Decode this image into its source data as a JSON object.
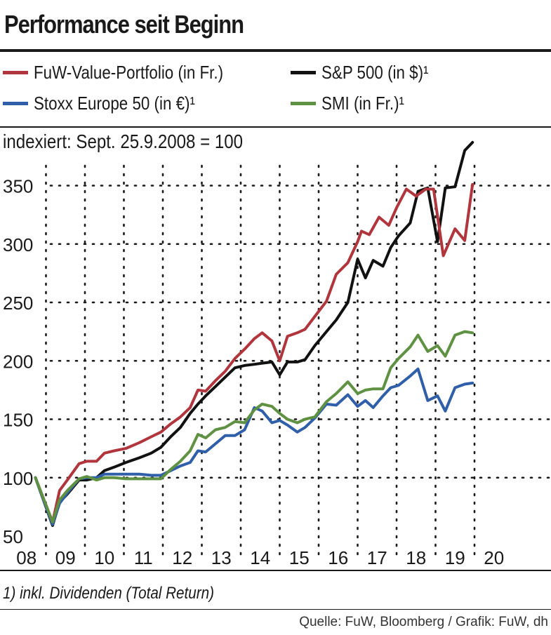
{
  "header": {
    "title": "Performance seit Beginn",
    "subtitle": "indexiert: Sept. 25.9.2008 = 100"
  },
  "footer": {
    "note": "1) inkl. Dividenden (Total Return)",
    "source": "Quelle: FuW, Bloomberg / Grafik: FuW, dh"
  },
  "chart_data": {
    "type": "line",
    "title": "Performance seit Beginn",
    "subtitle": "indexiert: Sept. 25.9.2008 = 100",
    "xlabel": "",
    "ylabel": "",
    "xlim": [
      2008.4,
      2020.5
    ],
    "ylim": [
      50,
      385
    ],
    "x_ticks": [
      {
        "value": 2008.5,
        "label": "08"
      },
      {
        "value": 2009.5,
        "label": "09"
      },
      {
        "value": 2010.5,
        "label": "10"
      },
      {
        "value": 2011.5,
        "label": "11"
      },
      {
        "value": 2012.5,
        "label": "12"
      },
      {
        "value": 2013.5,
        "label": "13"
      },
      {
        "value": 2014.5,
        "label": "14"
      },
      {
        "value": 2015.5,
        "label": "15"
      },
      {
        "value": 2016.5,
        "label": "16"
      },
      {
        "value": 2017.5,
        "label": "17"
      },
      {
        "value": 2018.5,
        "label": "18"
      },
      {
        "value": 2019.5,
        "label": "19"
      },
      {
        "value": 2020.5,
        "label": "20"
      }
    ],
    "vgrid": [
      2009,
      2010,
      2011,
      2012,
      2013,
      2014,
      2015,
      2016,
      2017,
      2018,
      2019,
      2020
    ],
    "y_ticks": [
      50,
      100,
      150,
      200,
      250,
      300,
      350
    ],
    "grid": "dotted",
    "legend_position": "top",
    "series": [
      {
        "name": "FuW-Value-Portfolio (in Fr.)",
        "color": "#b0353c",
        "points": [
          [
            2008.73,
            100
          ],
          [
            2009.17,
            62
          ],
          [
            2009.35,
            89
          ],
          [
            2009.55,
            98
          ],
          [
            2009.85,
            112
          ],
          [
            2010.05,
            114
          ],
          [
            2010.3,
            114
          ],
          [
            2010.5,
            121
          ],
          [
            2010.75,
            123
          ],
          [
            2011.05,
            125
          ],
          [
            2011.4,
            130
          ],
          [
            2011.7,
            135
          ],
          [
            2011.95,
            139
          ],
          [
            2012.2,
            146
          ],
          [
            2012.45,
            152
          ],
          [
            2012.7,
            160
          ],
          [
            2012.9,
            175
          ],
          [
            2013.1,
            174
          ],
          [
            2013.35,
            183
          ],
          [
            2013.6,
            191
          ],
          [
            2013.85,
            202
          ],
          [
            2014.1,
            210
          ],
          [
            2014.35,
            219
          ],
          [
            2014.55,
            224
          ],
          [
            2014.8,
            217
          ],
          [
            2015.0,
            200
          ],
          [
            2015.2,
            221
          ],
          [
            2015.45,
            224
          ],
          [
            2015.65,
            227
          ],
          [
            2015.9,
            238
          ],
          [
            2016.2,
            251
          ],
          [
            2016.45,
            274
          ],
          [
            2016.75,
            284
          ],
          [
            2017.0,
            302
          ],
          [
            2017.1,
            311
          ],
          [
            2017.3,
            308
          ],
          [
            2017.55,
            323
          ],
          [
            2017.8,
            316
          ],
          [
            2018.0,
            331
          ],
          [
            2018.25,
            347
          ],
          [
            2018.5,
            341
          ],
          [
            2018.75,
            347
          ],
          [
            2018.95,
            347
          ],
          [
            2019.2,
            290
          ],
          [
            2019.5,
            313
          ],
          [
            2019.75,
            303
          ],
          [
            2019.95,
            351
          ]
        ]
      },
      {
        "name": "S&P 500 (in $)¹",
        "color": "#111111",
        "points": [
          [
            2008.73,
            100
          ],
          [
            2009.17,
            59
          ],
          [
            2009.35,
            79
          ],
          [
            2009.55,
            86
          ],
          [
            2009.85,
            98
          ],
          [
            2010.05,
            98
          ],
          [
            2010.3,
            100
          ],
          [
            2010.5,
            106
          ],
          [
            2010.75,
            109
          ],
          [
            2011.05,
            113
          ],
          [
            2011.4,
            117
          ],
          [
            2011.7,
            121
          ],
          [
            2011.95,
            126
          ],
          [
            2012.2,
            135
          ],
          [
            2012.45,
            143
          ],
          [
            2012.7,
            155
          ],
          [
            2012.9,
            163
          ],
          [
            2013.1,
            170
          ],
          [
            2013.35,
            178
          ],
          [
            2013.6,
            186
          ],
          [
            2013.85,
            194
          ],
          [
            2014.1,
            196
          ],
          [
            2014.35,
            197
          ],
          [
            2014.55,
            198
          ],
          [
            2014.8,
            199
          ],
          [
            2015.0,
            188
          ],
          [
            2015.2,
            199
          ],
          [
            2015.45,
            199
          ],
          [
            2015.65,
            201
          ],
          [
            2015.9,
            213
          ],
          [
            2016.2,
            225
          ],
          [
            2016.45,
            235
          ],
          [
            2016.75,
            250
          ],
          [
            2017.0,
            287
          ],
          [
            2017.2,
            271
          ],
          [
            2017.4,
            286
          ],
          [
            2017.65,
            281
          ],
          [
            2017.85,
            297
          ],
          [
            2018.05,
            307
          ],
          [
            2018.35,
            318
          ],
          [
            2018.55,
            345
          ],
          [
            2018.8,
            348
          ],
          [
            2019.05,
            302
          ],
          [
            2019.25,
            348
          ],
          [
            2019.5,
            349
          ],
          [
            2019.75,
            380
          ],
          [
            2019.95,
            387
          ]
        ]
      },
      {
        "name": "Stoxx Europe 50 (in €)¹",
        "color": "#2e5fa8",
        "points": [
          [
            2008.73,
            100
          ],
          [
            2009.17,
            60
          ],
          [
            2009.35,
            78
          ],
          [
            2009.55,
            87
          ],
          [
            2009.85,
            99
          ],
          [
            2010.05,
            100
          ],
          [
            2010.3,
            100
          ],
          [
            2010.5,
            103
          ],
          [
            2010.75,
            103
          ],
          [
            2011.05,
            103
          ],
          [
            2011.4,
            103
          ],
          [
            2011.7,
            102
          ],
          [
            2011.95,
            102
          ],
          [
            2012.2,
            106
          ],
          [
            2012.45,
            110
          ],
          [
            2012.7,
            113
          ],
          [
            2012.9,
            123
          ],
          [
            2013.1,
            122
          ],
          [
            2013.35,
            129
          ],
          [
            2013.6,
            136
          ],
          [
            2013.85,
            136
          ],
          [
            2014.1,
            141
          ],
          [
            2014.35,
            160
          ],
          [
            2014.55,
            157
          ],
          [
            2014.8,
            147
          ],
          [
            2015.0,
            149
          ],
          [
            2015.2,
            145
          ],
          [
            2015.45,
            139
          ],
          [
            2015.65,
            143
          ],
          [
            2015.9,
            151
          ],
          [
            2016.2,
            163
          ],
          [
            2016.45,
            162
          ],
          [
            2016.75,
            171
          ],
          [
            2017.0,
            161
          ],
          [
            2017.2,
            166
          ],
          [
            2017.4,
            160
          ],
          [
            2017.65,
            170
          ],
          [
            2017.85,
            177
          ],
          [
            2018.05,
            179
          ],
          [
            2018.35,
            187
          ],
          [
            2018.55,
            193
          ],
          [
            2018.8,
            166
          ],
          [
            2019.05,
            170
          ],
          [
            2019.25,
            157
          ],
          [
            2019.5,
            177
          ],
          [
            2019.75,
            180
          ],
          [
            2019.95,
            181
          ]
        ]
      },
      {
        "name": "SMI (in Fr.)¹",
        "color": "#5e9141",
        "points": [
          [
            2008.73,
            100
          ],
          [
            2009.17,
            62
          ],
          [
            2009.35,
            81
          ],
          [
            2009.55,
            89
          ],
          [
            2009.85,
            99
          ],
          [
            2010.05,
            101
          ],
          [
            2010.3,
            98
          ],
          [
            2010.5,
            100
          ],
          [
            2010.75,
            100
          ],
          [
            2011.05,
            99
          ],
          [
            2011.4,
            99
          ],
          [
            2011.7,
            99
          ],
          [
            2011.95,
            99
          ],
          [
            2012.2,
            107
          ],
          [
            2012.45,
            114
          ],
          [
            2012.7,
            123
          ],
          [
            2012.9,
            137
          ],
          [
            2013.1,
            134
          ],
          [
            2013.35,
            141
          ],
          [
            2013.6,
            143
          ],
          [
            2013.85,
            148
          ],
          [
            2014.1,
            147
          ],
          [
            2014.35,
            158
          ],
          [
            2014.55,
            163
          ],
          [
            2014.8,
            161
          ],
          [
            2015.0,
            155
          ],
          [
            2015.2,
            150
          ],
          [
            2015.45,
            147
          ],
          [
            2015.65,
            150
          ],
          [
            2015.9,
            152
          ],
          [
            2016.2,
            165
          ],
          [
            2016.45,
            172
          ],
          [
            2016.75,
            182
          ],
          [
            2017.0,
            172
          ],
          [
            2017.2,
            175
          ],
          [
            2017.4,
            176
          ],
          [
            2017.65,
            176
          ],
          [
            2017.85,
            194
          ],
          [
            2018.05,
            202
          ],
          [
            2018.35,
            212
          ],
          [
            2018.55,
            222
          ],
          [
            2018.8,
            208
          ],
          [
            2019.05,
            213
          ],
          [
            2019.25,
            204
          ],
          [
            2019.5,
            222
          ],
          [
            2019.75,
            225
          ],
          [
            2019.95,
            224
          ]
        ]
      }
    ]
  }
}
